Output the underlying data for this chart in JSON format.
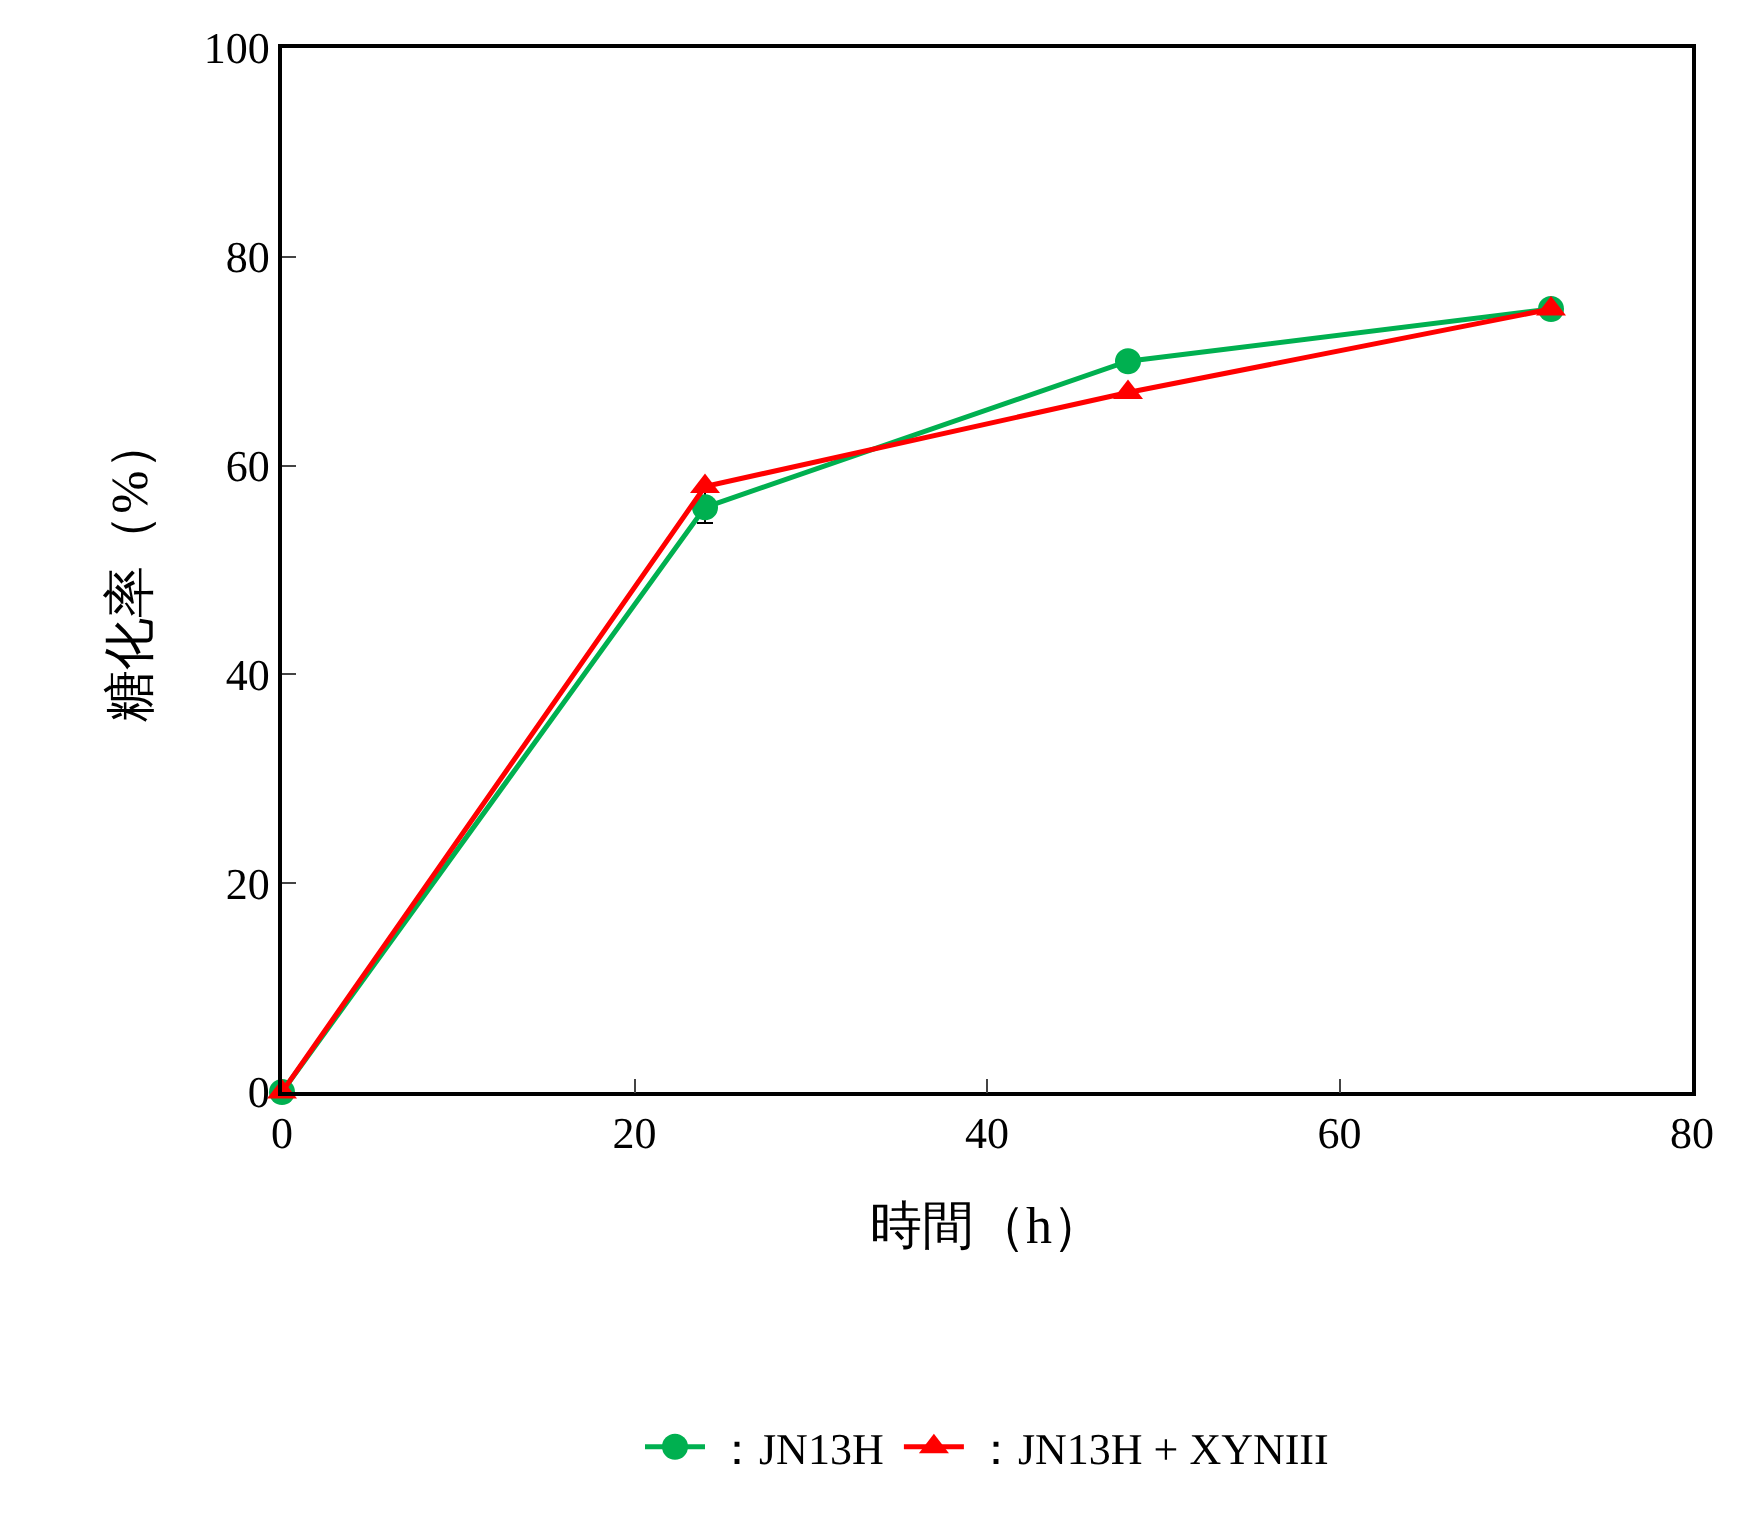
{
  "chart_data": {
    "type": "line",
    "xlabel": "時間（h）",
    "ylabel": "糖化率（%）",
    "x": [
      0,
      24,
      48,
      72
    ],
    "series": [
      {
        "name": "：JN13H",
        "color": "#00b050",
        "marker": "circle",
        "values": [
          0,
          56,
          70,
          75
        ],
        "errors": [
          null,
          1.5,
          null,
          null
        ]
      },
      {
        "name": "：JN13H + XYNIII",
        "color": "#ff0000",
        "marker": "triangle",
        "values": [
          0,
          58,
          67,
          75
        ]
      }
    ],
    "xlim": [
      0,
      80
    ],
    "xticks": [
      0,
      20,
      40,
      60,
      80
    ],
    "ylim": [
      0,
      100
    ],
    "yticks": [
      0,
      20,
      40,
      60,
      80,
      100
    ],
    "legend": "bottom",
    "line_style": "solid"
  }
}
